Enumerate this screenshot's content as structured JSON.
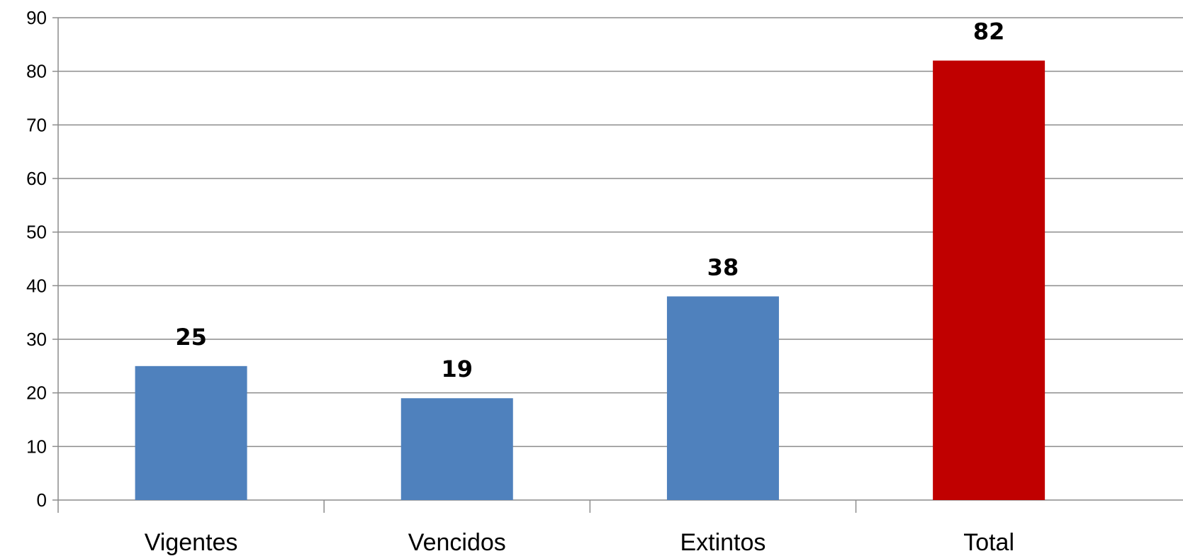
{
  "chart_data": {
    "type": "bar",
    "title": "",
    "xlabel": "",
    "ylabel": "",
    "categories": [
      "Vigentes",
      "Vencidos",
      "Extintos",
      "Total"
    ],
    "values": [
      25,
      19,
      38,
      82
    ],
    "data_labels": [
      "25",
      "19",
      "38",
      "82"
    ],
    "bar_colors": [
      "#4f81bd",
      "#4f81bd",
      "#4f81bd",
      "#c00000"
    ],
    "ylim": [
      0,
      90
    ],
    "yticks": [
      "0",
      "10",
      "20",
      "30",
      "40",
      "50",
      "60",
      "70",
      "80",
      "90"
    ],
    "grid": true,
    "legend": "none"
  }
}
